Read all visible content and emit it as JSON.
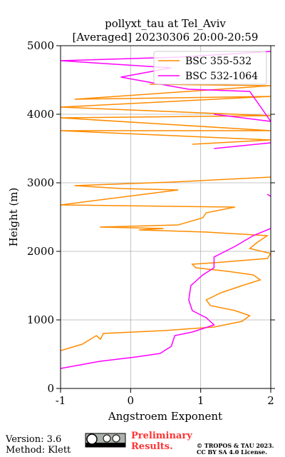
{
  "chart_data": {
    "type": "line",
    "title": "pollyxt_tau at Tel_Aviv",
    "subtitle": "[Averaged] 20230306 20:00-20:59",
    "x_label": "Angstroem Exponent",
    "y_label": "Height (m)",
    "xlim": [
      -1,
      2
    ],
    "xticks": [
      -1,
      0,
      1,
      2
    ],
    "ylim": [
      0,
      5000
    ],
    "yticks": [
      0,
      1000,
      2000,
      3000,
      4000,
      5000
    ],
    "grid": true,
    "legend": "upper right",
    "series": [
      {
        "name": "BSC 355-532",
        "color": "#ff8c00",
        "x": [
          -1,
          -0.69,
          -0.49,
          -0.43,
          -0.39,
          0.47,
          1.19,
          1.59,
          1.7,
          1.49,
          1.14,
          1.08,
          1.29,
          1.59,
          1.85,
          1.75,
          1.39,
          0.93,
          0.88,
          1.19,
          1.95,
          2.0,
          1.7,
          1.8,
          1.95,
          1.08,
          0.12,
          0.47,
          -0.44,
          0.68,
          1.03,
          1.08,
          1.49,
          -1,
          0.68,
          -0.14,
          -0.8,
          0.58,
          2.0,
          null,
          0.88,
          2.0,
          -1,
          2.0,
          -1,
          2.0,
          -1,
          2.0,
          -0.8,
          2.0,
          0.27
        ],
        "y": [
          552,
          646,
          771,
          719,
          802,
          844,
          896,
          979,
          1063,
          1135,
          1208,
          1292,
          1396,
          1500,
          1583,
          1656,
          1708,
          1760,
          1812,
          1833,
          1896,
          1969,
          2042,
          2125,
          2229,
          2281,
          2312,
          2333,
          2354,
          2385,
          2490,
          2563,
          2646,
          2677,
          2896,
          2917,
          2958,
          3010,
          3083,
          null,
          3563,
          3625,
          3760,
          3760,
          3948,
          3979,
          4104,
          4260,
          4219,
          4417,
          4437
        ]
      },
      {
        "name": "BSC 532-1064",
        "color": "#ff00ff",
        "x": [
          -1,
          -0.44,
          0.07,
          0.42,
          0.58,
          0.63,
          0.88,
          1.19,
          1.08,
          0.88,
          0.83,
          0.86,
          1.03,
          1.19,
          1.19,
          1.49,
          1.75,
          2.0,
          null,
          1.95,
          2.0,
          null,
          1.19,
          2.0,
          null,
          1.19,
          2.0,
          1.7,
          0.83,
          -0.14,
          0.58,
          -1,
          0.68,
          2.0
        ],
        "y": [
          292,
          396,
          458,
          510,
          615,
          771,
          823,
          927,
          1031,
          1135,
          1292,
          1500,
          1656,
          1760,
          1917,
          2073,
          2229,
          2333,
          null,
          2833,
          2802,
          null,
          3500,
          3583,
          null,
          4000,
          3896,
          4333,
          4365,
          4542,
          4677,
          4781,
          4833,
          4917
        ]
      }
    ]
  },
  "footer": {
    "version": "Version: 3.6",
    "method": "Method: Klett",
    "status": "Preliminary Results.",
    "copyright": "© TROPOS & TAU 2023.",
    "license": "CC BY SA 4.0 License."
  }
}
